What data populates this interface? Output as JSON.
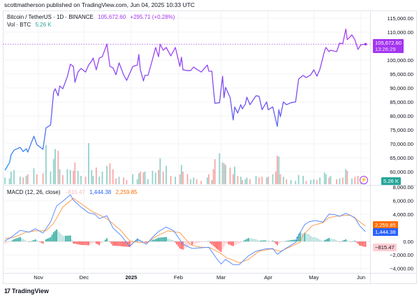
{
  "header": {
    "published": "scottmatherson published on TradingView.com, Jun 04, 2025 10:33 UTC"
  },
  "legend": {
    "symbol": "Bitcoin / TetherUS · 1D · BINANCE",
    "price": "105,672.60",
    "change": "+295.71 (+0.28%)",
    "vol_label": "Vol · BTC",
    "vol_value": "5.26 K",
    "macd_label": "MACD (12, 26, close)",
    "macd_hist": "−815.47",
    "macd_value": "1,444.38",
    "signal_value": "2,259.85"
  },
  "badges": {
    "price": "105,672.60",
    "countdown": "13:26:29",
    "volume": "5.26 K",
    "signal": "2,259.85",
    "macd": "1,444.38",
    "hist": "−815.47"
  },
  "colors": {
    "price_low": "#2196f3",
    "price_high": "#b03cf3",
    "price_badge": "#a435f0",
    "up": "#26a69a",
    "down": "#ef5350",
    "macd": "#2962ff",
    "signal": "#ff6d00",
    "hist_pos_strong": "#26a69a",
    "hist_pos_weak": "#b2dfdb",
    "hist_neg_strong": "#ff5252",
    "hist_neg_weak": "#ffcdd2"
  },
  "footer": {
    "brand": "TradingView",
    "logo_mark": "17"
  },
  "icons": {
    "flash": "lightning-icon"
  },
  "chart_data": [
    {
      "type": "line",
      "title": "Bitcoin / TetherUS · 1D · BINANCE",
      "unit": "USDT",
      "ylim": [
        55000,
        117000
      ],
      "grid": true,
      "last_price": 105672.6,
      "y_ticks": [
        {
          "v": 115000,
          "label": "115,000.00"
        },
        {
          "v": 110000,
          "label": "110,000.00"
        },
        {
          "v": 100000,
          "label": "100,000.00"
        },
        {
          "v": 95000,
          "label": "95,000.00"
        },
        {
          "v": 90000,
          "label": "90,000.00"
        },
        {
          "v": 85000,
          "label": "85,000.00"
        },
        {
          "v": 80000,
          "label": "80,000.00"
        },
        {
          "v": 75000,
          "label": "75,000.00"
        },
        {
          "v": 70000,
          "label": "70,000.00"
        },
        {
          "v": 65000,
          "label": "65,000.00"
        },
        {
          "v": 60000,
          "label": "60,000.00"
        }
      ],
      "x_ticks": [
        {
          "date": "2024-11-01",
          "label": "Nov"
        },
        {
          "date": "2024-12-01",
          "label": "Dec"
        },
        {
          "date": "2025-01-01",
          "label": "2025",
          "bold": true
        },
        {
          "date": "2025-02-01",
          "label": "Feb"
        },
        {
          "date": "2025-03-01",
          "label": "Mar"
        },
        {
          "date": "2025-04-01",
          "label": "Apr"
        },
        {
          "date": "2025-05-01",
          "label": "May"
        },
        {
          "date": "2025-06-01",
          "label": "Jun"
        }
      ],
      "points": [
        [
          "2024-10-10",
          60500,
          8
        ],
        [
          "2024-10-13",
          63200,
          7
        ],
        [
          "2024-10-14",
          66000,
          15
        ],
        [
          "2024-10-16",
          67700,
          17
        ],
        [
          "2024-10-20",
          68700,
          9
        ],
        [
          "2024-10-22",
          67200,
          8
        ],
        [
          "2024-10-24",
          68200,
          10
        ],
        [
          "2024-10-25",
          67000,
          12
        ],
        [
          "2024-10-29",
          72700,
          19
        ],
        [
          "2024-10-31",
          69700,
          12
        ],
        [
          "2024-11-04",
          68000,
          13
        ],
        [
          "2024-11-06",
          75700,
          47
        ],
        [
          "2024-11-09",
          76700,
          15
        ],
        [
          "2024-11-11",
          88500,
          30
        ],
        [
          "2024-11-12",
          89700,
          42
        ],
        [
          "2024-11-14",
          87200,
          40
        ],
        [
          "2024-11-15",
          90700,
          18
        ],
        [
          "2024-11-17",
          89700,
          11
        ],
        [
          "2024-11-20",
          94000,
          18
        ],
        [
          "2024-11-22",
          98500,
          17
        ],
        [
          "2024-11-24",
          97700,
          16
        ],
        [
          "2024-11-25",
          92000,
          26
        ],
        [
          "2024-11-27",
          95700,
          16
        ],
        [
          "2024-11-29",
          97000,
          10
        ],
        [
          "2024-12-02",
          95700,
          9
        ],
        [
          "2024-12-04",
          98200,
          49
        ],
        [
          "2024-12-06",
          99700,
          17
        ],
        [
          "2024-12-07",
          100700,
          10
        ],
        [
          "2024-12-09",
          96500,
          20
        ],
        [
          "2024-12-11",
          100700,
          9
        ],
        [
          "2024-12-13",
          101200,
          15
        ],
        [
          "2024-12-16",
          105700,
          22
        ],
        [
          "2024-12-18",
          97700,
          25
        ],
        [
          "2024-12-20",
          97200,
          18
        ],
        [
          "2024-12-22",
          94700,
          7
        ],
        [
          "2024-12-24",
          99000,
          9
        ],
        [
          "2024-12-27",
          94700,
          8
        ],
        [
          "2024-12-29",
          92700,
          5
        ],
        [
          "2025-01-02",
          97700,
          12
        ],
        [
          "2025-01-05",
          98200,
          6
        ],
        [
          "2025-01-06",
          102000,
          13
        ],
        [
          "2025-01-07",
          96500,
          15
        ],
        [
          "2025-01-09",
          92500,
          14
        ],
        [
          "2025-01-10",
          94500,
          15
        ],
        [
          "2025-01-12",
          94500,
          6
        ],
        [
          "2025-01-15",
          100200,
          16
        ],
        [
          "2025-01-17",
          104500,
          14
        ],
        [
          "2025-01-19",
          101200,
          17
        ],
        [
          "2025-01-20",
          105700,
          31
        ],
        [
          "2025-01-22",
          103500,
          15
        ],
        [
          "2025-01-24",
          104500,
          22
        ],
        [
          "2025-01-27",
          101500,
          10
        ],
        [
          "2025-01-30",
          104500,
          9
        ],
        [
          "2025-02-02",
          97700,
          12
        ],
        [
          "2025-02-03",
          101000,
          23
        ],
        [
          "2025-02-04",
          96500,
          15
        ],
        [
          "2025-02-07",
          96200,
          12
        ],
        [
          "2025-02-09",
          96200,
          6
        ],
        [
          "2025-02-11",
          97500,
          8
        ],
        [
          "2025-02-13",
          96700,
          6
        ],
        [
          "2025-02-16",
          95700,
          4
        ],
        [
          "2025-02-20",
          98200,
          8
        ],
        [
          "2025-02-21",
          96000,
          12
        ],
        [
          "2025-02-23",
          96000,
          5
        ],
        [
          "2025-02-24",
          89700,
          18
        ],
        [
          "2025-02-25",
          84500,
          30
        ],
        [
          "2025-02-28",
          84700,
          37
        ],
        [
          "2025-03-02",
          94200,
          26
        ],
        [
          "2025-03-03",
          86500,
          25
        ],
        [
          "2025-03-04",
          90200,
          23
        ],
        [
          "2025-03-07",
          86500,
          20
        ],
        [
          "2025-03-09",
          78500,
          12
        ],
        [
          "2025-03-10",
          83200,
          21
        ],
        [
          "2025-03-12",
          81000,
          10
        ],
        [
          "2025-03-14",
          84000,
          9
        ],
        [
          "2025-03-15",
          82500,
          5
        ],
        [
          "2025-03-17",
          84200,
          6
        ],
        [
          "2025-03-18",
          86700,
          8
        ],
        [
          "2025-03-20",
          84000,
          6
        ],
        [
          "2025-03-24",
          87200,
          10
        ],
        [
          "2025-03-26",
          87000,
          8
        ],
        [
          "2025-03-28",
          82200,
          9
        ],
        [
          "2025-03-31",
          85000,
          8
        ],
        [
          "2025-04-01",
          82200,
          9
        ],
        [
          "2025-04-04",
          83200,
          12
        ],
        [
          "2025-04-06",
          78500,
          15
        ],
        [
          "2025-04-07",
          76200,
          34
        ],
        [
          "2025-04-08",
          82200,
          33
        ],
        [
          "2025-04-09",
          79700,
          12
        ],
        [
          "2025-04-11",
          85000,
          9
        ],
        [
          "2025-04-13",
          84000,
          6
        ],
        [
          "2025-04-16",
          84700,
          5
        ],
        [
          "2025-04-19",
          85000,
          4
        ],
        [
          "2025-04-21",
          93200,
          11
        ],
        [
          "2025-04-24",
          94500,
          10
        ],
        [
          "2025-04-26",
          93700,
          4
        ],
        [
          "2025-04-29",
          94700,
          5
        ],
        [
          "2025-05-01",
          96500,
          6
        ],
        [
          "2025-05-03",
          94200,
          5
        ],
        [
          "2025-05-05",
          96700,
          8
        ],
        [
          "2025-05-08",
          103200,
          14
        ],
        [
          "2025-05-09",
          104500,
          12
        ],
        [
          "2025-05-11",
          103000,
          8
        ],
        [
          "2025-05-12",
          103500,
          10
        ],
        [
          "2025-05-16",
          103000,
          6
        ],
        [
          "2025-05-18",
          106100,
          7
        ],
        [
          "2025-05-20",
          105800,
          8
        ],
        [
          "2025-05-22",
          111100,
          18
        ],
        [
          "2025-05-23",
          107300,
          16
        ],
        [
          "2025-05-26",
          109000,
          7
        ],
        [
          "2025-05-28",
          107300,
          9
        ],
        [
          "2025-05-30",
          103800,
          10
        ],
        [
          "2025-06-01",
          105500,
          4
        ],
        [
          "2025-06-04",
          105672.6,
          5.26
        ]
      ],
      "point_fields": [
        "date",
        "close",
        "volume_k_btc"
      ]
    },
    {
      "type": "line",
      "title": "MACD (12, 26, close)",
      "ylim": [
        -5000,
        8500
      ],
      "y_ticks": [
        {
          "v": 8000,
          "label": "8,000.00"
        },
        {
          "v": 6000,
          "label": "6,000.00"
        },
        {
          "v": 4000,
          "label": "4,000.00"
        },
        {
          "v": 0,
          "label": "0.00"
        },
        {
          "v": -2000,
          "label": "−2,000.00"
        },
        {
          "v": -4000,
          "label": "−4,000.00"
        }
      ],
      "macd": [
        [
          "2024-10-10",
          100
        ],
        [
          "2024-10-14",
          600
        ],
        [
          "2024-10-20",
          1650
        ],
        [
          "2024-10-26",
          1370
        ],
        [
          "2024-10-30",
          1890
        ],
        [
          "2024-11-04",
          1240
        ],
        [
          "2024-11-09",
          2880
        ],
        [
          "2024-11-13",
          5250
        ],
        [
          "2024-11-18",
          6100
        ],
        [
          "2024-11-22",
          6900
        ],
        [
          "2024-11-24",
          6100
        ],
        [
          "2024-11-29",
          5080
        ],
        [
          "2024-12-04",
          4220
        ],
        [
          "2024-12-08",
          4050
        ],
        [
          "2024-12-11",
          3370
        ],
        [
          "2024-12-16",
          3800
        ],
        [
          "2024-12-20",
          1990
        ],
        [
          "2024-12-25",
          960
        ],
        [
          "2024-12-31",
          -720
        ],
        [
          "2025-01-05",
          340
        ],
        [
          "2025-01-11",
          -400
        ],
        [
          "2025-01-15",
          620
        ],
        [
          "2025-01-19",
          1470
        ],
        [
          "2025-01-24",
          2130
        ],
        [
          "2025-01-29",
          1580
        ],
        [
          "2025-02-04",
          -410
        ],
        [
          "2025-02-10",
          -1030
        ],
        [
          "2025-02-21",
          -860
        ],
        [
          "2025-02-26",
          -2470
        ],
        [
          "2025-03-01",
          -3330
        ],
        [
          "2025-03-04",
          -2650
        ],
        [
          "2025-03-09",
          -3430
        ],
        [
          "2025-03-13",
          -3430
        ],
        [
          "2025-03-19",
          -2130
        ],
        [
          "2025-03-24",
          -1440
        ],
        [
          "2025-03-30",
          -1100
        ],
        [
          "2025-04-04",
          -1030
        ],
        [
          "2025-04-07",
          -1890
        ],
        [
          "2025-04-12",
          -1100
        ],
        [
          "2025-04-19",
          -140
        ],
        [
          "2025-04-21",
          900
        ],
        [
          "2025-04-25",
          2500
        ],
        [
          "2025-04-28",
          2910
        ],
        [
          "2025-05-02",
          3090
        ],
        [
          "2025-05-07",
          2850
        ],
        [
          "2025-05-11",
          4050
        ],
        [
          "2025-05-15",
          3950
        ],
        [
          "2025-05-18",
          3710
        ],
        [
          "2025-05-22",
          4150
        ],
        [
          "2025-05-28",
          3530
        ],
        [
          "2025-05-31",
          2340
        ],
        [
          "2025-06-04",
          1444.38
        ]
      ],
      "signal": [
        [
          "2024-10-10",
          440
        ],
        [
          "2024-10-16",
          620
        ],
        [
          "2024-10-24",
          1370
        ],
        [
          "2024-10-30",
          1580
        ],
        [
          "2024-11-06",
          1580
        ],
        [
          "2024-11-11",
          2680
        ],
        [
          "2024-11-17",
          5080
        ],
        [
          "2024-11-24",
          6390
        ],
        [
          "2024-11-30",
          5430
        ],
        [
          "2024-12-06",
          4460
        ],
        [
          "2024-12-13",
          3710
        ],
        [
          "2024-12-17",
          3190
        ],
        [
          "2024-12-25",
          1650
        ],
        [
          "2024-12-31",
          100
        ],
        [
          "2025-01-06",
          -140
        ],
        [
          "2025-01-11",
          -200
        ],
        [
          "2025-01-17",
          690
        ],
        [
          "2025-01-25",
          1580
        ],
        [
          "2025-02-02",
          1300
        ],
        [
          "2025-02-09",
          -480
        ],
        [
          "2025-02-15",
          -820
        ],
        [
          "2025-02-22",
          -930
        ],
        [
          "2025-03-01",
          -1780
        ],
        [
          "2025-03-05",
          -2470
        ],
        [
          "2025-03-08",
          -2650
        ],
        [
          "2025-03-13",
          -3160
        ],
        [
          "2025-03-19",
          -2650
        ],
        [
          "2025-03-26",
          -1440
        ],
        [
          "2025-04-03",
          -1100
        ],
        [
          "2025-04-09",
          -1440
        ],
        [
          "2025-04-16",
          -750
        ],
        [
          "2025-04-22",
          -100
        ],
        [
          "2025-04-24",
          960
        ],
        [
          "2025-04-30",
          2340
        ],
        [
          "2025-05-07",
          2780
        ],
        [
          "2025-05-11",
          3530
        ],
        [
          "2025-05-18",
          3780
        ],
        [
          "2025-05-25",
          3880
        ],
        [
          "2025-05-29",
          3260
        ],
        [
          "2025-06-04",
          2259.85
        ]
      ],
      "histogram_last": -815.47
    }
  ]
}
